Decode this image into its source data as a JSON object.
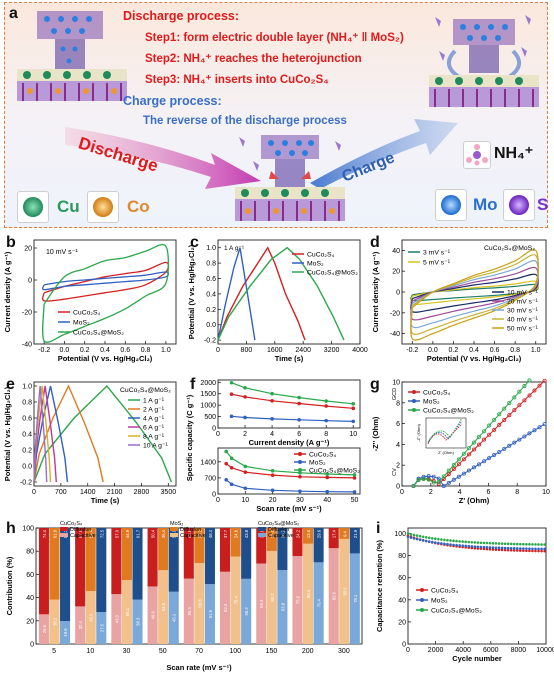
{
  "panel_a": {
    "label": "a",
    "discharge_title": "Discharge process:",
    "step1": "Step1: form electric double layer (NH₄⁺ ǁ MoS₂)",
    "step2": "Step2: NH₄⁺ reaches the heterojunction",
    "step3": "Step3: NH₄⁺ inserts into CuCo₂S₄",
    "charge_title": "Charge process:",
    "charge_desc": "The reverse of the discharge process",
    "arrow_discharge": "Discharge",
    "arrow_charge": "Charge",
    "legend_cu": "Cu",
    "legend_co": "Co",
    "legend_mo": "Mo",
    "legend_s": "S",
    "legend_nh4": "NH₄⁺",
    "colors": {
      "cu": "#1f8a5a",
      "co": "#f0962c",
      "mo": "#2a7fe0",
      "s": "#7a2fd0",
      "red": "#e01a1a",
      "blue": "#3a6fc6"
    }
  },
  "panel_labels": [
    "b",
    "c",
    "d",
    "e",
    "f",
    "g",
    "h",
    "i"
  ],
  "chart_data": [
    {
      "panel": "b",
      "type": "line",
      "annotation": "10 mV s⁻¹",
      "xlabel": "Potential (V vs. Hg/Hg₂Cl₂)",
      "ylabel": "Current density (A g⁻¹)",
      "xlim": [
        -0.3,
        1.1
      ],
      "ylim": [
        -40,
        25
      ],
      "xticks": [
        "-0.2",
        "0.0",
        "0.2",
        "0.4",
        "0.6",
        "0.8",
        "1.0"
      ],
      "yticks": [
        "-40",
        "-20",
        "0",
        "20"
      ],
      "series": [
        {
          "name": "CuCo₂S₄",
          "color": "#d42020",
          "upper": [
            [
              -0.2,
              -8
            ],
            [
              0,
              -4
            ],
            [
              0.2,
              -1
            ],
            [
              0.4,
              2
            ],
            [
              0.6,
              4
            ],
            [
              0.8,
              6
            ],
            [
              1.0,
              11
            ]
          ],
          "lower": [
            [
              -0.2,
              -13
            ],
            [
              0,
              -12
            ],
            [
              0.2,
              -10
            ],
            [
              0.4,
              -8
            ],
            [
              0.6,
              -6
            ],
            [
              0.8,
              -3
            ],
            [
              1.0,
              5
            ]
          ]
        },
        {
          "name": "MoS₂",
          "color": "#3060c0",
          "upper": [
            [
              -0.2,
              -3
            ],
            [
              0,
              -1
            ],
            [
              0.2,
              0
            ],
            [
              0.4,
              1
            ],
            [
              0.6,
              2
            ],
            [
              0.8,
              3
            ],
            [
              1.0,
              5
            ]
          ],
          "lower": [
            [
              -0.2,
              -6
            ],
            [
              0,
              -4
            ],
            [
              0.2,
              -3
            ],
            [
              0.4,
              -2
            ],
            [
              0.6,
              -1
            ],
            [
              0.8,
              0
            ],
            [
              1.0,
              2
            ]
          ]
        },
        {
          "name": "CuCo₂S₄@MoS₂",
          "color": "#2aa84a",
          "upper": [
            [
              -0.2,
              -15
            ],
            [
              0,
              2
            ],
            [
              0.2,
              7
            ],
            [
              0.4,
              12
            ],
            [
              0.6,
              14
            ],
            [
              0.8,
              18
            ],
            [
              1.0,
              21
            ]
          ],
          "lower": [
            [
              -0.2,
              -38
            ],
            [
              0,
              -34
            ],
            [
              0.2,
              -29
            ],
            [
              0.4,
              -24
            ],
            [
              0.6,
              -18
            ],
            [
              0.8,
              -10
            ],
            [
              1.0,
              -2
            ]
          ]
        }
      ]
    },
    {
      "panel": "c",
      "type": "line",
      "annotation": "1 A g⁻¹",
      "xlabel": "Time (s)",
      "ylabel": "Potential (V vs. Hg/Hg₂Cl₂)",
      "xlim": [
        0,
        4000
      ],
      "ylim": [
        -0.25,
        1.1
      ],
      "xticks": [
        "0",
        "800",
        "1600",
        "2400",
        "3200",
        "4000"
      ],
      "yticks": [
        "-0.2",
        "0.0",
        "0.2",
        "0.4",
        "0.6",
        "0.8",
        "1.0"
      ],
      "series": [
        {
          "name": "CuCo₂S₄",
          "color": "#d42020",
          "points": [
            [
              0,
              -0.2
            ],
            [
              250,
              0.1
            ],
            [
              700,
              0.5
            ],
            [
              1150,
              0.82
            ],
            [
              1400,
              1.0
            ],
            [
              1600,
              0.8
            ],
            [
              1900,
              0.4
            ],
            [
              2250,
              0.05
            ],
            [
              2450,
              -0.2
            ]
          ]
        },
        {
          "name": "MoS₂",
          "color": "#3060c0",
          "points": [
            [
              0,
              -0.2
            ],
            [
              200,
              0.25
            ],
            [
              450,
              0.75
            ],
            [
              620,
              1.0
            ],
            [
              760,
              0.6
            ],
            [
              900,
              0.2
            ],
            [
              1040,
              -0.2
            ]
          ]
        },
        {
          "name": "CuCo₂S₄@MoS₂",
          "color": "#2aa84a",
          "points": [
            [
              0,
              -0.2
            ],
            [
              300,
              0.1
            ],
            [
              900,
              0.5
            ],
            [
              1500,
              0.85
            ],
            [
              1950,
              1.0
            ],
            [
              2300,
              0.85
            ],
            [
              2800,
              0.5
            ],
            [
              3250,
              0.1
            ],
            [
              3550,
              -0.2
            ]
          ]
        }
      ]
    },
    {
      "panel": "d",
      "type": "line",
      "title": "CuCo₂S₄@MoS₂",
      "xlabel": "Potential (V vs. Hg/Hg₂Cl₂)",
      "ylabel": "Current density (A g⁻¹)",
      "xlim": [
        -0.3,
        1.1
      ],
      "ylim": [
        -50,
        50
      ],
      "xticks": [
        "-0.2",
        "0.0",
        "0.2",
        "0.4",
        "0.6",
        "0.8",
        "1.0"
      ],
      "yticks": [
        "-40",
        "-20",
        "0",
        "20",
        "40"
      ],
      "scan_rates": [
        "3 mV s⁻¹",
        "5 mV s⁻¹",
        "10 mV s⁻¹",
        "20 mV s⁻¹",
        "30 mV s⁻¹",
        "40 mV s⁻¹",
        "50 mV s⁻¹"
      ],
      "colors": [
        "#1e7e6a",
        "#d7c320",
        "#1a2a66",
        "#a04a98",
        "#7aa8d8",
        "#c8b234",
        "#c8a012"
      ],
      "scales": [
        0.18,
        0.26,
        0.42,
        0.58,
        0.74,
        0.88,
        1.0
      ]
    },
    {
      "panel": "e",
      "type": "line",
      "title": "CuCo₂S₄@MoS₂",
      "xlabel": "Time (s)",
      "ylabel": "Potential (V vs. Hg/Hg₂Cl₂)",
      "xlim": [
        0,
        3700
      ],
      "ylim": [
        -0.25,
        1.05
      ],
      "xticks": [
        "0",
        "700",
        "1400",
        "2100",
        "2800",
        "3500"
      ],
      "yticks": [
        "-0.2",
        "0.0",
        "0.2",
        "0.4",
        "0.6",
        "0.8",
        "1.0"
      ],
      "series": [
        {
          "name": "1 A g⁻¹",
          "color": "#2aa84a",
          "t_peak": 1900,
          "t_end": 3580
        },
        {
          "name": "2 A g⁻¹",
          "color": "#e07a20",
          "t_peak": 900,
          "t_end": 1800
        },
        {
          "name": "4 A g⁻¹",
          "color": "#3060c0",
          "t_peak": 430,
          "t_end": 870
        },
        {
          "name": "6 A g⁻¹",
          "color": "#b83aa0",
          "t_peak": 290,
          "t_end": 580
        },
        {
          "name": "8 A g⁻¹",
          "color": "#d8b020",
          "t_peak": 210,
          "t_end": 430
        },
        {
          "name": "10 A g⁻¹",
          "color": "#9c6ad0",
          "t_peak": 160,
          "t_end": 330
        }
      ]
    },
    {
      "panel": "f_top",
      "type": "line",
      "xlabel": "Current density (A g⁻¹)",
      "ylabel": "Specific capacity (C g⁻¹)",
      "xlim": [
        0,
        10.5
      ],
      "ylim": [
        0,
        2100
      ],
      "xticks": [
        "0",
        "2",
        "4",
        "6",
        "8",
        "10"
      ],
      "yticks": [
        "0",
        "500",
        "1000",
        "1500",
        "2000"
      ],
      "x": [
        1,
        2,
        4,
        6,
        8,
        10
      ],
      "series": [
        {
          "name": "CuCo₂S₄",
          "color": "#d42020",
          "values": [
            1480,
            1360,
            1190,
            1070,
            960,
            860
          ]
        },
        {
          "name": "MoS₂",
          "color": "#3060c0",
          "values": [
            510,
            460,
            400,
            360,
            320,
            290
          ]
        },
        {
          "name": "CuCo₂S₄@MoS₂",
          "color": "#2aa84a",
          "values": [
            1980,
            1760,
            1500,
            1330,
            1180,
            1060
          ]
        }
      ]
    },
    {
      "panel": "f_bottom",
      "type": "line",
      "xlabel": "Scan rate (mV s⁻¹)",
      "xlim": [
        0,
        52
      ],
      "ylim": [
        0,
        2000
      ],
      "xticks": [
        "0",
        "10",
        "20",
        "30",
        "40",
        "50"
      ],
      "yticks": [
        "0",
        "700",
        "1400"
      ],
      "x": [
        3,
        5,
        10,
        20,
        30,
        40,
        50
      ],
      "series": [
        {
          "name": "CuCo₂S₄",
          "color": "#d42020",
          "values": [
            1320,
            1140,
            950,
            820,
            750,
            720,
            700
          ]
        },
        {
          "name": "MoS₂",
          "color": "#3060c0",
          "values": [
            620,
            420,
            250,
            160,
            120,
            100,
            90
          ]
        },
        {
          "name": "CuCo₂S₄@MoS₂",
          "color": "#2aa84a",
          "values": [
            1850,
            1550,
            1200,
            1010,
            920,
            870,
            830
          ]
        }
      ]
    },
    {
      "panel": "g",
      "type": "scatter",
      "xlabel": "Z' (Ohm)",
      "ylabel": "-Z'' (Ohm)",
      "xlim": [
        0,
        10
      ],
      "ylim": [
        0,
        10
      ],
      "xticks": [
        "0",
        "2",
        "4",
        "6",
        "8",
        "10"
      ],
      "yticks": [
        "0",
        "2",
        "4",
        "6",
        "8",
        "10"
      ],
      "side_labels": [
        "GCD",
        "CV"
      ],
      "inset": {
        "xlabel": "Z' (Ohm)",
        "ylabel": "-Z'' (Ohm)",
        "xticks": [
          "2",
          "3"
        ],
        "yticks": [
          "0.0",
          "0.5",
          "1.0"
        ]
      },
      "series": [
        {
          "name": "CuCo₂S₄",
          "color": "#d42020",
          "start": 2.4,
          "slope": 1.35
        },
        {
          "name": "MoS₂",
          "color": "#3060c0",
          "start": 2.9,
          "slope": 0.85
        },
        {
          "name": "CuCo₂S₄@MoS₂",
          "color": "#2aa84a",
          "start": 2.3,
          "slope": 1.55
        }
      ]
    },
    {
      "panel": "h",
      "type": "bar",
      "xlabel": "Scan rate (mV s⁻¹)",
      "ylabel": "Contribution (%)",
      "ylim": [
        0,
        100
      ],
      "yticks": [
        "0",
        "20",
        "40",
        "60",
        "80",
        "100"
      ],
      "categories": [
        "5",
        "10",
        "30",
        "50",
        "70",
        "100",
        "150",
        "200",
        "300"
      ],
      "groups": [
        {
          "title": "CuCo₂S₄",
          "diffusion_color": "#c81e1e",
          "capacitive_color": "#e9a3a3"
        },
        {
          "title": "MoS₂",
          "diffusion_color": "#e07a20",
          "capacitive_color": "#f2c08a"
        },
        {
          "title": "CuCo₂S₄@MoS₂",
          "diffusion_color": "#1e4e8c",
          "capacitive_color": "#7aa8d8"
        }
      ],
      "legend": [
        "Diffusion",
        "Capacitive"
      ],
      "capacitive": [
        [
          25.6,
          32.4,
          43.0,
          49.6,
          56.4,
          62.3,
          69.4,
          75.8,
          82.6
        ],
        [
          38.2,
          45.6,
          55.1,
          63.6,
          69.8,
          75.4,
          80.2,
          86.4,
          90.6
        ],
        [
          19.8,
          27.5,
          38.3,
          45.1,
          51.6,
          56.2,
          63.8,
          70.4,
          78.1
        ]
      ]
    },
    {
      "panel": "i",
      "type": "scatter",
      "xlabel": "Cycle number",
      "ylabel": "Capacitance retention (%)",
      "xlim": [
        0,
        10000
      ],
      "ylim": [
        0,
        105
      ],
      "xticks": [
        "0",
        "2000",
        "4000",
        "6000",
        "8000",
        "10000"
      ],
      "yticks": [
        "0",
        "20",
        "40",
        "60",
        "80",
        "100"
      ],
      "series": [
        {
          "name": "CuCo₂S₄",
          "color": "#d42020",
          "start": 98,
          "end": 84
        },
        {
          "name": "MoS₂",
          "color": "#3060c0",
          "start": 97,
          "end": 86
        },
        {
          "name": "CuCo₂S₄@MoS₂",
          "color": "#2aa84a",
          "start": 100,
          "end": 90
        }
      ]
    }
  ]
}
